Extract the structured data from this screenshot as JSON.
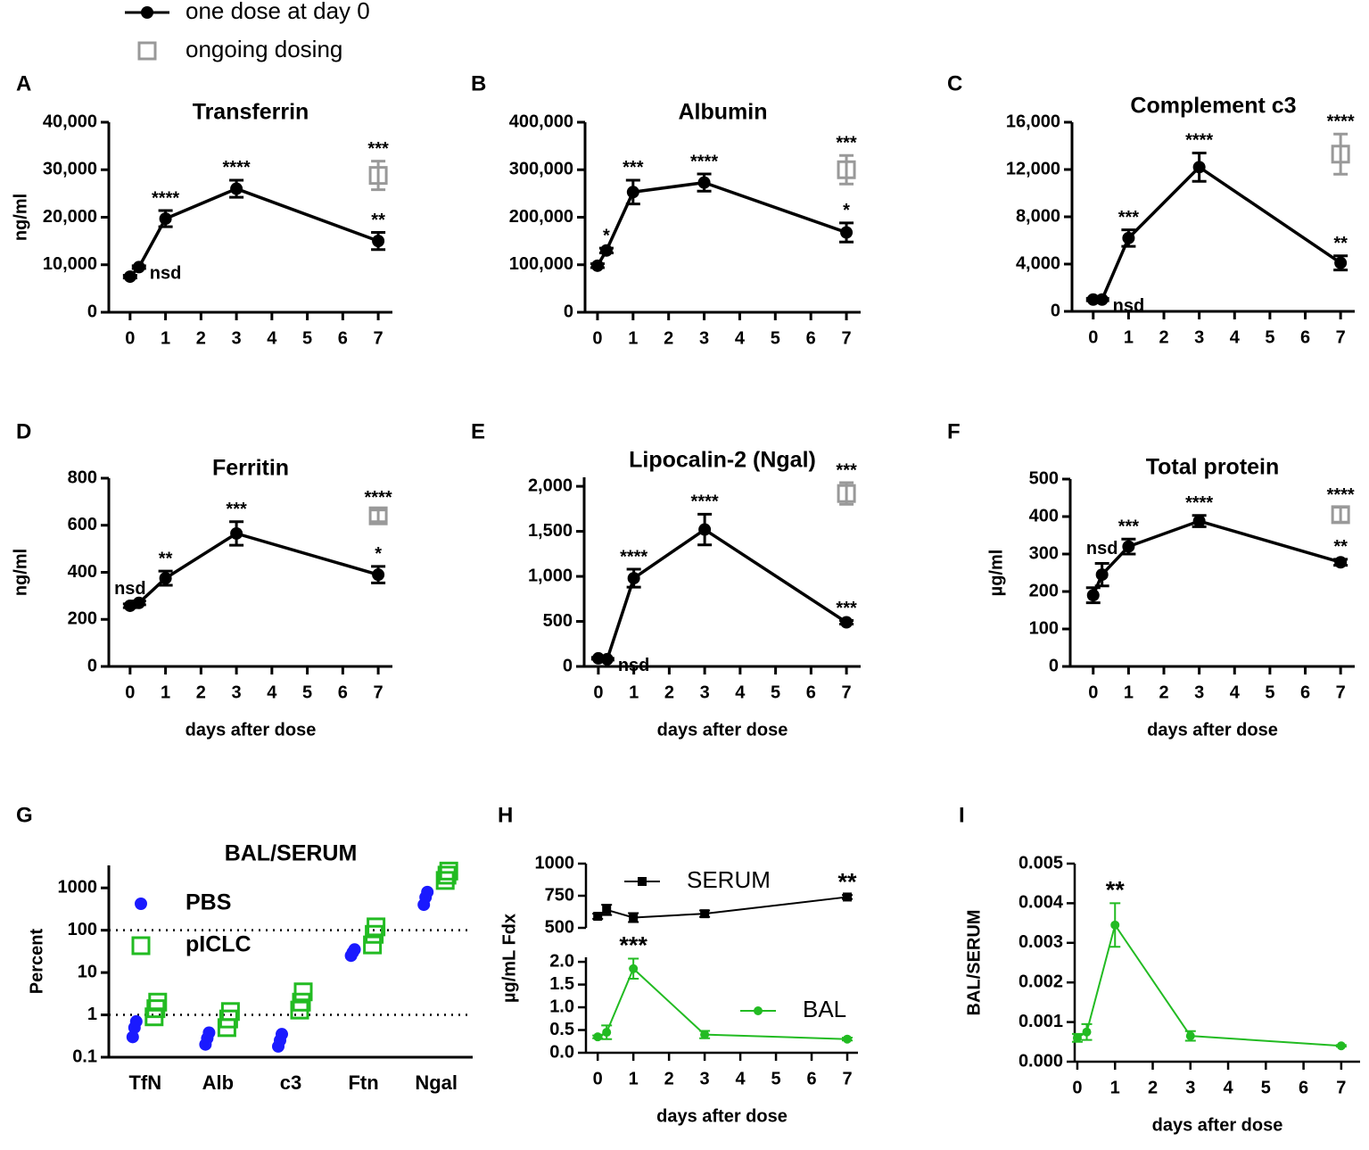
{
  "legend": [
    {
      "name": "one dose at day 0",
      "color": "#000000",
      "marker": "circle"
    },
    {
      "name": "ongoing dosing",
      "color": "#999999",
      "marker": "open-square"
    }
  ],
  "chart_data": [
    {
      "panel": "A",
      "type": "line",
      "title": "Transferrin",
      "ylabel": "ng/ml",
      "xlim": [
        -0.6,
        7.4
      ],
      "xticks": [
        0,
        1,
        2,
        3,
        4,
        5,
        6,
        7
      ],
      "ylim": [
        0,
        40000
      ],
      "yticks": [
        0,
        {
          "value": 10000,
          "label": "10,000"
        },
        {
          "value": 20000,
          "label": "20,000"
        },
        {
          "value": 30000,
          "label": "30,000"
        },
        {
          "value": 40000,
          "label": "40,000"
        }
      ],
      "series": [
        {
          "color": "#000000",
          "marker": "circle",
          "x": [
            0,
            0.25,
            1,
            3,
            7
          ],
          "values": [
            7500,
            9500,
            19700,
            26000,
            15000
          ],
          "errors": [
            300,
            300,
            1700,
            1800,
            1800
          ],
          "annotations": [
            null,
            "nsd",
            "****",
            "****",
            "**"
          ]
        },
        {
          "color": "#999999",
          "marker": "open-square",
          "x": [
            7
          ],
          "values": [
            28800
          ],
          "errors": [
            3000
          ],
          "annotations": [
            "***"
          ]
        }
      ]
    },
    {
      "panel": "B",
      "type": "line",
      "title": "Albumin",
      "xlim": [
        -0.35,
        7.4
      ],
      "xticks": [
        0,
        1,
        2,
        3,
        4,
        5,
        6,
        7
      ],
      "ylim": [
        0,
        400000
      ],
      "yticks": [
        0,
        {
          "value": 100000,
          "label": "100,000"
        },
        {
          "value": 200000,
          "label": "200,000"
        },
        {
          "value": 300000,
          "label": "300,000"
        },
        {
          "value": 400000,
          "label": "400,000"
        }
      ],
      "series": [
        {
          "color": "#000000",
          "marker": "circle",
          "x": [
            0,
            0.25,
            1,
            3,
            7
          ],
          "values": [
            98000,
            130000,
            253000,
            273000,
            168000
          ],
          "errors": [
            4000,
            5000,
            25000,
            18000,
            20000
          ],
          "annotations": [
            null,
            "*",
            "***",
            "****",
            "*"
          ]
        },
        {
          "color": "#999999",
          "marker": "open-square",
          "x": [
            7
          ],
          "values": [
            300000
          ],
          "errors": [
            30000
          ],
          "annotations": [
            "***"
          ]
        }
      ]
    },
    {
      "panel": "C",
      "type": "line",
      "title": "Complement c3",
      "xlim": [
        -0.6,
        7.4
      ],
      "xticks": [
        0,
        1,
        2,
        3,
        4,
        5,
        6,
        7
      ],
      "ylim": [
        0,
        16000
      ],
      "yticks": [
        0,
        {
          "value": 4000,
          "label": "4,000"
        },
        {
          "value": 8000,
          "label": "8,000"
        },
        {
          "value": 12000,
          "label": "12,000"
        },
        {
          "value": 16000,
          "label": "16,000"
        }
      ],
      "series": [
        {
          "color": "#000000",
          "marker": "circle",
          "x": [
            0,
            0.25,
            1,
            3,
            7
          ],
          "values": [
            1000,
            1000,
            6200,
            12200,
            4100
          ],
          "errors": [
            100,
            100,
            700,
            1200,
            600
          ],
          "annotations": [
            null,
            "nsd",
            "***",
            "****",
            "**"
          ]
        },
        {
          "color": "#999999",
          "marker": "open-square",
          "x": [
            7
          ],
          "values": [
            13300
          ],
          "errors": [
            1700
          ],
          "annotations": [
            "****"
          ]
        }
      ]
    },
    {
      "panel": "D",
      "type": "line",
      "title": "Ferritin",
      "ylabel": "ng/ml",
      "xlabel": "days after dose",
      "xlim": [
        -0.6,
        7.4
      ],
      "xticks": [
        0,
        1,
        2,
        3,
        4,
        5,
        6,
        7
      ],
      "ylim": [
        0,
        800
      ],
      "yticks": [
        0,
        200,
        400,
        600,
        800
      ],
      "series": [
        {
          "color": "#000000",
          "marker": "circle",
          "x": [
            0,
            0.25,
            1,
            3,
            7
          ],
          "values": [
            258,
            270,
            375,
            565,
            390
          ],
          "errors": [
            8,
            8,
            30,
            50,
            35
          ],
          "annotations": [
            "nsd",
            null,
            "**",
            "***",
            "*"
          ]
        },
        {
          "color": "#999999",
          "marker": "open-square",
          "x": [
            7
          ],
          "values": [
            640
          ],
          "errors": [
            25
          ],
          "annotations": [
            "****"
          ]
        }
      ]
    },
    {
      "panel": "E",
      "type": "line",
      "title": "Lipocalin-2 (Ngal)",
      "xlabel": "days after dose",
      "xlim": [
        -0.4,
        7.4
      ],
      "xticks": [
        0,
        1,
        2,
        3,
        4,
        5,
        6,
        7
      ],
      "ylim": [
        0,
        2100
      ],
      "yticks": [
        0,
        500,
        {
          "value": 1000,
          "label": "1,000"
        },
        {
          "value": 1500,
          "label": "1,500"
        },
        {
          "value": 2000,
          "label": "2,000"
        }
      ],
      "series": [
        {
          "color": "#000000",
          "marker": "circle",
          "x": [
            0,
            0.25,
            1,
            3,
            7
          ],
          "values": [
            90,
            80,
            980,
            1520,
            490
          ],
          "errors": [
            10,
            10,
            100,
            170,
            20
          ],
          "annotations": [
            null,
            "nsd",
            "****",
            "****",
            "***"
          ]
        },
        {
          "color": "#999999",
          "marker": "open-square",
          "x": [
            7
          ],
          "values": [
            1920
          ],
          "errors": [
            120
          ],
          "annotations": [
            "***"
          ]
        }
      ]
    },
    {
      "panel": "F",
      "type": "line",
      "title": "Total protein",
      "ylabel": "µg/ml",
      "xlabel": "days after dose",
      "xlim": [
        -0.65,
        7.4
      ],
      "xticks": [
        0,
        1,
        2,
        3,
        4,
        5,
        6,
        7
      ],
      "ylim": [
        0,
        500
      ],
      "yticks": [
        0,
        100,
        200,
        300,
        400,
        500
      ],
      "series": [
        {
          "color": "#000000",
          "marker": "circle",
          "x": [
            0,
            0.25,
            1,
            3,
            7
          ],
          "values": [
            190,
            245,
            320,
            388,
            278
          ],
          "errors": [
            20,
            30,
            20,
            15,
            8
          ],
          "annotations": [
            null,
            "nsd",
            "***",
            "****",
            "**"
          ]
        },
        {
          "color": "#999999",
          "marker": "open-square",
          "x": [
            7
          ],
          "values": [
            405
          ],
          "errors": [
            20
          ],
          "annotations": [
            "****"
          ]
        }
      ]
    },
    {
      "panel": "G",
      "type": "strip",
      "title": "BAL/SERUM",
      "ylabel": "Percent",
      "log": true,
      "categories": [
        "TfN",
        "Alb",
        "c3",
        "Ftn",
        "Ngal"
      ],
      "ylim": [
        0.1,
        3400
      ],
      "yticks": [
        0.1,
        1,
        10,
        100,
        1000
      ],
      "hlines": [
        1,
        100
      ],
      "series": [
        {
          "name": "PBS",
          "color": "#1a1aff",
          "marker": "circle",
          "values": [
            [
              0.3,
              0.5,
              0.7
            ],
            [
              0.2,
              0.28,
              0.38
            ],
            [
              0.18,
              0.25,
              0.35
            ],
            [
              25,
              30,
              35
            ],
            [
              400,
              600,
              800
            ]
          ]
        },
        {
          "name": "pICLC",
          "color": "#22bb22",
          "marker": "open-square",
          "values": [
            [
              0.9,
              1.4,
              2
            ],
            [
              0.5,
              0.8,
              1.2
            ],
            [
              1.3,
              2,
              3.5
            ],
            [
              45,
              80,
              120
            ],
            [
              1500,
              2000,
              2500
            ]
          ]
        }
      ]
    },
    {
      "panel": "H",
      "type": "line",
      "ylabel": "µg/mL Fdx",
      "xlabel": "days after dose",
      "xlim": [
        -0.33,
        7.3
      ],
      "xticks": [
        0,
        1,
        2,
        3,
        4,
        5,
        6,
        7
      ],
      "ylim": [
        0,
        2.1
      ],
      "yticks": [
        {
          "value": 0,
          "label": "0.0"
        },
        {
          "value": 0.5,
          "label": "0.5"
        },
        {
          "value": 1,
          "label": "1.0"
        },
        {
          "value": 1.5,
          "label": "1.5"
        },
        {
          "value": 2,
          "label": "2.0"
        }
      ],
      "y2lim": [
        500,
        1000
      ],
      "y2ticks": [
        500,
        750,
        1000
      ],
      "series": [
        {
          "name": "SERUM",
          "axis": "y2",
          "color": "#000000",
          "marker": "square",
          "x": [
            0,
            0.25,
            1,
            3,
            7
          ],
          "values": [
            590,
            640,
            580,
            610,
            740
          ],
          "errors": [
            20,
            40,
            35,
            25,
            15
          ],
          "annotations": [
            null,
            null,
            null,
            null,
            "**"
          ]
        },
        {
          "name": "BAL",
          "color": "#22bb22",
          "marker": "circle",
          "x": [
            0,
            0.25,
            1,
            3,
            7
          ],
          "values": [
            0.35,
            0.45,
            1.85,
            0.4,
            0.3
          ],
          "errors": [
            0.03,
            0.15,
            0.22,
            0.08,
            0.03
          ],
          "annotations": [
            null,
            null,
            "***",
            null,
            null
          ]
        }
      ]
    },
    {
      "panel": "I",
      "type": "line",
      "ylabel": "BAL/SERUM",
      "xlabel": "days after dose",
      "xlim": [
        -0.07,
        7.5
      ],
      "xticks": [
        0,
        1,
        2,
        3,
        4,
        5,
        6,
        7
      ],
      "ylim": [
        0,
        0.005
      ],
      "yticks": [
        {
          "value": 0,
          "label": "0.000"
        },
        {
          "value": 0.001,
          "label": "0.001"
        },
        {
          "value": 0.002,
          "label": "0.002"
        },
        {
          "value": 0.003,
          "label": "0.003"
        },
        {
          "value": 0.004,
          "label": "0.004"
        },
        {
          "value": 0.005,
          "label": "0.005"
        }
      ],
      "series": [
        {
          "color": "#22bb22",
          "marker": "circle",
          "x": [
            0,
            0.25,
            1,
            3,
            7
          ],
          "values": [
            0.0006,
            0.00075,
            0.00345,
            0.00065,
            0.0004
          ],
          "errors": [
            0.0001,
            0.0002,
            0.00055,
            0.00012,
            2e-05
          ],
          "annotations": [
            null,
            null,
            "**",
            null,
            null
          ]
        }
      ]
    }
  ]
}
